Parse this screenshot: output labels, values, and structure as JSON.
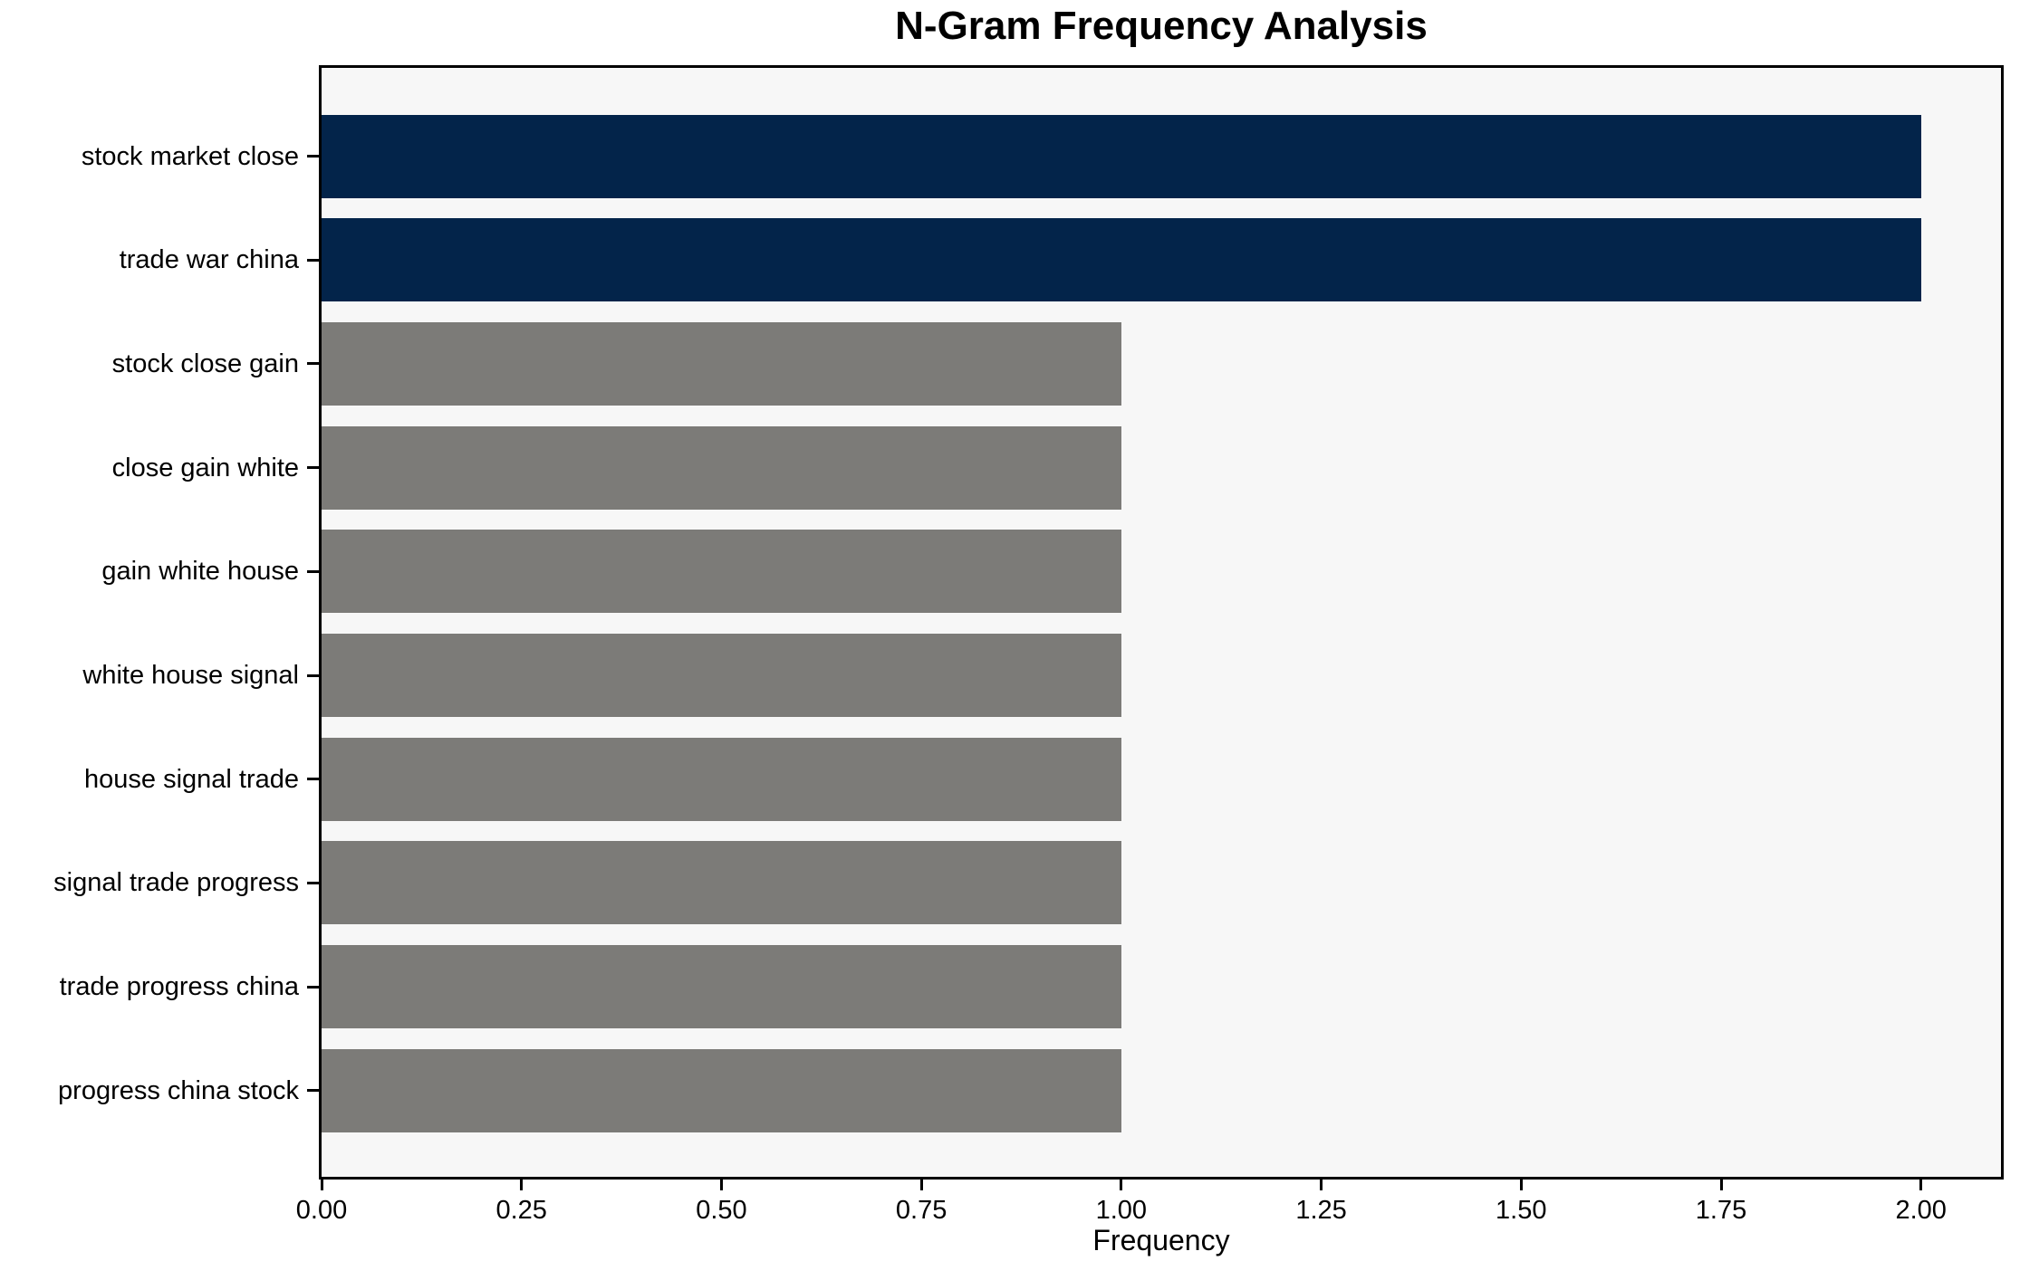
{
  "chart_data": {
    "type": "bar",
    "orientation": "horizontal",
    "title": "N-Gram Frequency Analysis",
    "xlabel": "Frequency",
    "ylabel": "",
    "grid": false,
    "legend": null,
    "xlim": [
      0,
      2.1
    ],
    "x_tick_step": 0.25,
    "x_ticks": [
      "0.00",
      "0.25",
      "0.50",
      "0.75",
      "1.00",
      "1.25",
      "1.50",
      "1.75",
      "2.00"
    ],
    "categories": [
      "stock market close",
      "trade war china",
      "stock close gain",
      "close gain white",
      "gain white house",
      "white house signal",
      "house signal trade",
      "signal trade progress",
      "trade progress china",
      "progress china stock"
    ],
    "values": [
      2,
      2,
      1,
      1,
      1,
      1,
      1,
      1,
      1,
      1
    ],
    "bar_colors": [
      "#03244a",
      "#03244a",
      "#7c7b78",
      "#7c7b78",
      "#7c7b78",
      "#7c7b78",
      "#7c7b78",
      "#7c7b78",
      "#7c7b78",
      "#7c7b78"
    ],
    "colors": {
      "highlight_bar": "#03244a",
      "default_bar": "#7c7b78",
      "plot_background": "#f7f7f7",
      "figure_background": "#ffffff",
      "text": "#000000",
      "spine": "#000000"
    }
  }
}
